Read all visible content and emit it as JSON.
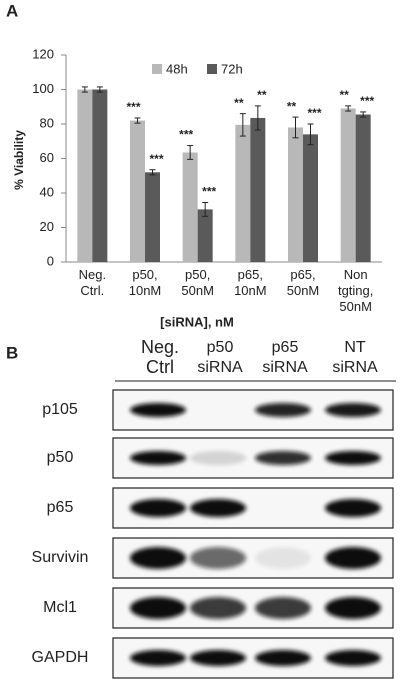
{
  "panel_labels": [
    "A",
    "B"
  ],
  "chart_data": {
    "type": "bar",
    "ylabel": "% Viability",
    "xlabel": "[siRNA], nM",
    "categories": [
      "Neg. Ctrl.",
      "p50, 10nM",
      "p50, 50nM",
      "p65, 10nM",
      "p65, 50nM",
      "Non tgting, 50nM"
    ],
    "series": [
      {
        "name": "48h",
        "color": "#b8b8b8",
        "values": [
          100,
          82,
          63.5,
          79.5,
          78,
          89
        ],
        "errors": [
          1.5,
          1.5,
          4,
          6.5,
          6,
          1.5
        ],
        "sig_labels": [
          null,
          "***",
          "***",
          "**",
          "**",
          "**"
        ]
      },
      {
        "name": "72h",
        "color": "#5a5a5a",
        "values": [
          100,
          52,
          30.5,
          83.5,
          74,
          85.5
        ],
        "errors": [
          1.5,
          1.5,
          4,
          7,
          6,
          1.5
        ],
        "sig_labels": [
          null,
          "***",
          "***",
          "**",
          "***",
          "***"
        ]
      }
    ],
    "ylim": [
      0,
      120
    ],
    "yticks": [
      0,
      20,
      40,
      60,
      80,
      100,
      120
    ],
    "legend": "top"
  },
  "blot": {
    "columns": [
      "Neg. Ctrl",
      "p50 siRNA",
      "p65 siRNA",
      "NT siRNA"
    ],
    "rows": [
      "p105",
      "p50",
      "p65",
      "Survivin",
      "Mcl1",
      "GAPDH"
    ]
  }
}
